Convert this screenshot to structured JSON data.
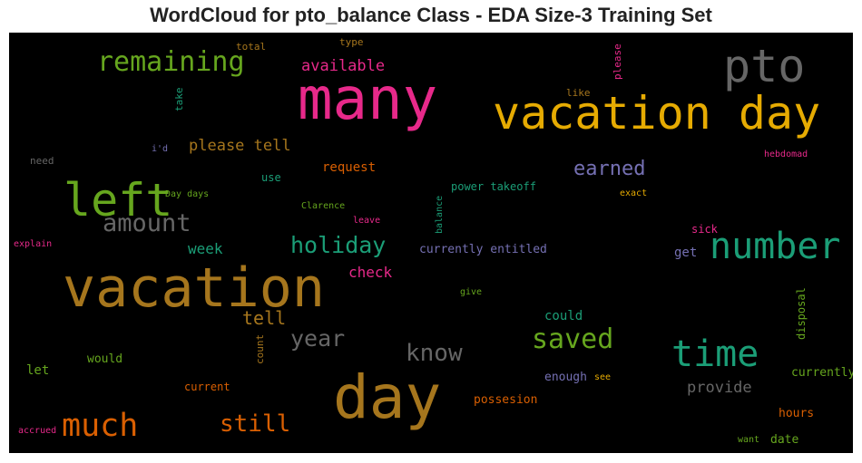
{
  "chart_data": {
    "type": "wordcloud",
    "title": "WordCloud for pto_balance Class - EDA Size-3 Training Set",
    "background": "#000000",
    "palette": "Dark2",
    "words": [
      {
        "text": "many",
        "color": "#e7298a"
      },
      {
        "text": "vacation day",
        "color": "#e6ab02"
      },
      {
        "text": "pto",
        "color": "#666666"
      },
      {
        "text": "remaining",
        "color": "#66a61e"
      },
      {
        "text": "available",
        "color": "#e7298a"
      },
      {
        "text": "total",
        "color": "#a6761d"
      },
      {
        "text": "type",
        "color": "#a6761d"
      },
      {
        "text": "please",
        "color": "#e7298a"
      },
      {
        "text": "like",
        "color": "#a6761d"
      },
      {
        "text": "take",
        "color": "#1b9e77"
      },
      {
        "text": "left",
        "color": "#66a61e"
      },
      {
        "text": "please tell",
        "color": "#a6761d"
      },
      {
        "text": "i'd",
        "color": "#7570b3"
      },
      {
        "text": "need",
        "color": "#666666"
      },
      {
        "text": "request",
        "color": "#d95f02"
      },
      {
        "text": "use",
        "color": "#1b9e77"
      },
      {
        "text": "earned",
        "color": "#7570b3"
      },
      {
        "text": "hebdomad",
        "color": "#e7298a"
      },
      {
        "text": "Day days",
        "color": "#66a61e"
      },
      {
        "text": "power takeoff",
        "color": "#1b9e77"
      },
      {
        "text": "exact",
        "color": "#e6ab02"
      },
      {
        "text": "Clarence",
        "color": "#66a61e"
      },
      {
        "text": "amount",
        "color": "#666666"
      },
      {
        "text": "leave",
        "color": "#e7298a"
      },
      {
        "text": "balance",
        "color": "#1b9e77"
      },
      {
        "text": "sick",
        "color": "#e7298a"
      },
      {
        "text": "number",
        "color": "#1b9e77"
      },
      {
        "text": "explain",
        "color": "#e7298a"
      },
      {
        "text": "week",
        "color": "#1b9e77"
      },
      {
        "text": "holiday",
        "color": "#1b9e77"
      },
      {
        "text": "currently entitled",
        "color": "#7570b3"
      },
      {
        "text": "get",
        "color": "#7570b3"
      },
      {
        "text": "vacation",
        "color": "#a6761d"
      },
      {
        "text": "check",
        "color": "#e7298a"
      },
      {
        "text": "give",
        "color": "#66a61e"
      },
      {
        "text": "disposal",
        "color": "#66a61e"
      },
      {
        "text": "tell",
        "color": "#a6761d"
      },
      {
        "text": "could",
        "color": "#1b9e77"
      },
      {
        "text": "year",
        "color": "#666666"
      },
      {
        "text": "saved",
        "color": "#66a61e"
      },
      {
        "text": "know",
        "color": "#666666"
      },
      {
        "text": "time",
        "color": "#1b9e77"
      },
      {
        "text": "count",
        "color": "#a6761d"
      },
      {
        "text": "would",
        "color": "#66a61e"
      },
      {
        "text": "let",
        "color": "#66a61e"
      },
      {
        "text": "enough",
        "color": "#7570b3"
      },
      {
        "text": "see",
        "color": "#e6ab02"
      },
      {
        "text": "currently",
        "color": "#66a61e"
      },
      {
        "text": "current",
        "color": "#d95f02"
      },
      {
        "text": "day",
        "color": "#a6761d"
      },
      {
        "text": "provide",
        "color": "#666666"
      },
      {
        "text": "possesion",
        "color": "#d95f02"
      },
      {
        "text": "much",
        "color": "#d95f02"
      },
      {
        "text": "still",
        "color": "#d95f02"
      },
      {
        "text": "hours",
        "color": "#d95f02"
      },
      {
        "text": "accrued",
        "color": "#e7298a"
      },
      {
        "text": "want",
        "color": "#66a61e"
      },
      {
        "text": "date",
        "color": "#66a61e"
      }
    ]
  }
}
